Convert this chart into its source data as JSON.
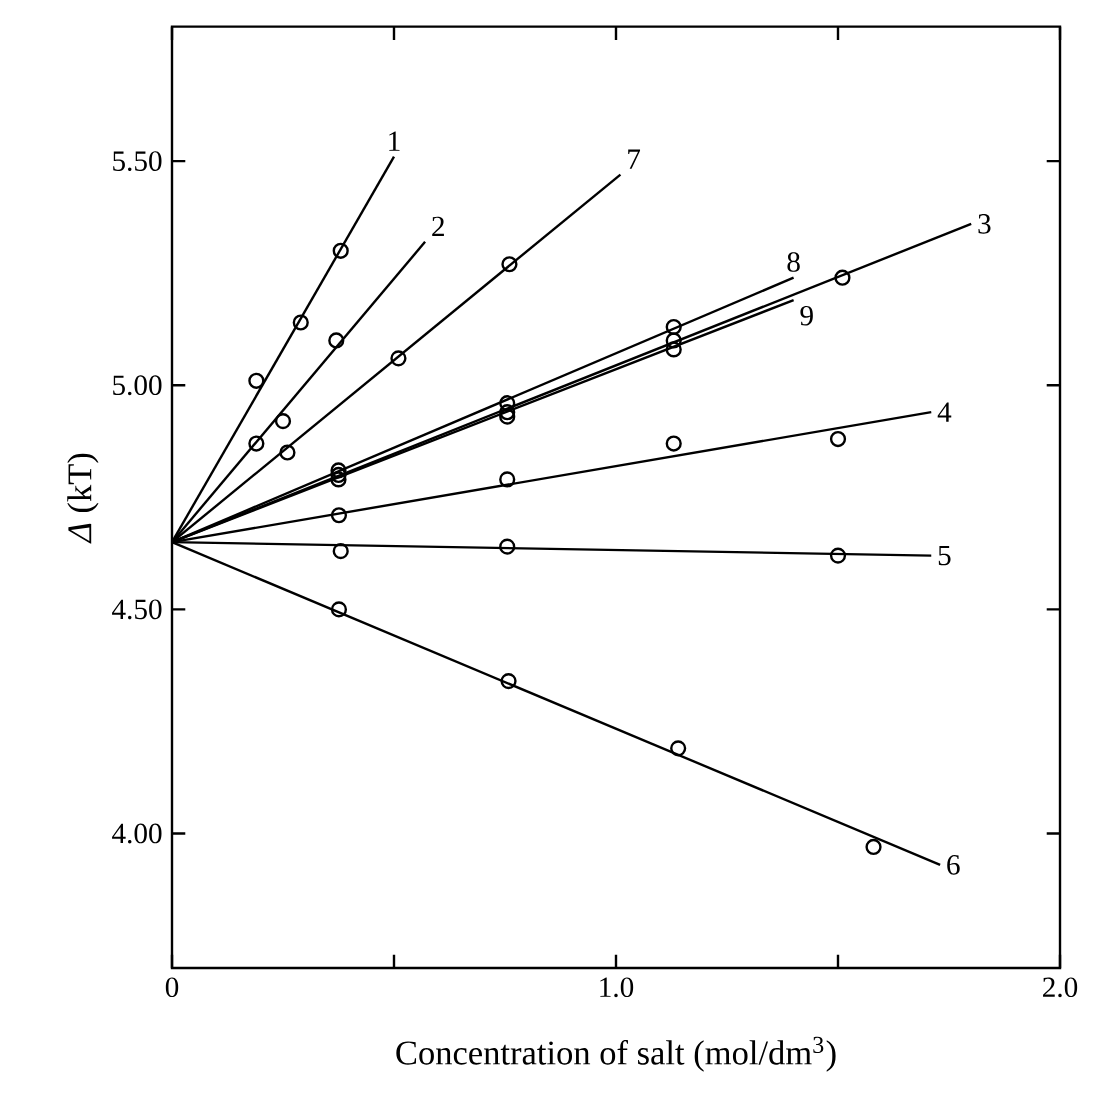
{
  "chart_data": {
    "type": "line",
    "xlabel": "Concentration of salt (mol/dm$^{3}$)",
    "ylabel": "*Δ* (kT)",
    "xlim": [
      0,
      2.0
    ],
    "ylim": [
      3.7,
      5.8
    ],
    "xticks": [
      0,
      {
        "value": 0.5,
        "label": null
      },
      {
        "value": 1.0,
        "label": "1.0"
      },
      {
        "value": 1.5,
        "label": null
      },
      {
        "value": 2.0,
        "label": "2.0"
      }
    ],
    "yticks": [
      {
        "value": 4.0,
        "label": "4.00"
      },
      {
        "value": 4.5,
        "label": "4.50"
      },
      {
        "value": 5.0,
        "label": "5.00"
      },
      {
        "value": 5.5,
        "label": "5.50"
      }
    ],
    "grid": false,
    "marker": "none",
    "line_style": "solid",
    "series": [
      {
        "name": "1",
        "color": "#000000",
        "x": [
          0,
          0.5
        ],
        "values": [
          4.65,
          5.51
        ]
      },
      {
        "name": "2",
        "color": "#000000",
        "x": [
          0,
          0.57
        ],
        "values": [
          4.65,
          5.32
        ]
      },
      {
        "name": "3",
        "color": "#000000",
        "x": [
          0,
          1.8
        ],
        "values": [
          4.65,
          5.36
        ]
      },
      {
        "name": "4",
        "color": "#000000",
        "x": [
          0,
          1.71
        ],
        "values": [
          4.65,
          4.94
        ]
      },
      {
        "name": "5",
        "color": "#000000",
        "x": [
          0,
          1.71
        ],
        "values": [
          4.65,
          4.62
        ]
      },
      {
        "name": "6",
        "color": "#000000",
        "x": [
          0,
          1.73
        ],
        "values": [
          4.65,
          3.93
        ]
      },
      {
        "name": "7",
        "color": "#000000",
        "x": [
          0,
          1.01
        ],
        "values": [
          4.65,
          5.47
        ]
      },
      {
        "name": "8",
        "color": "#000000",
        "x": [
          0,
          1.4
        ],
        "values": [
          4.65,
          5.24
        ]
      },
      {
        "name": "9",
        "color": "#000000",
        "x": [
          0,
          1.4
        ],
        "values": [
          4.65,
          5.19
        ]
      },
      {
        "type": "scatter",
        "marker": "circle",
        "color": "#000000",
        "x": [
          0.19,
          0.29,
          0.38,
          0.19,
          0.25,
          0.37,
          0.26,
          0.51,
          0.76,
          0.375,
          0.755,
          1.13,
          1.51,
          0.375,
          0.755,
          1.13,
          0.375,
          0.755,
          1.13,
          0.376,
          0.755,
          1.13,
          1.5,
          0.38,
          0.755,
          1.5,
          0.376,
          0.758,
          1.14,
          1.58
        ],
        "values": [
          5.01,
          5.14,
          5.3,
          4.87,
          4.92,
          5.1,
          4.85,
          5.06,
          5.27,
          4.79,
          4.93,
          5.08,
          5.24,
          4.81,
          4.96,
          5.13,
          4.8,
          4.94,
          5.1,
          4.71,
          4.79,
          4.87,
          4.88,
          4.63,
          4.64,
          4.62,
          4.5,
          4.34,
          4.19,
          3.97
        ]
      }
    ]
  }
}
